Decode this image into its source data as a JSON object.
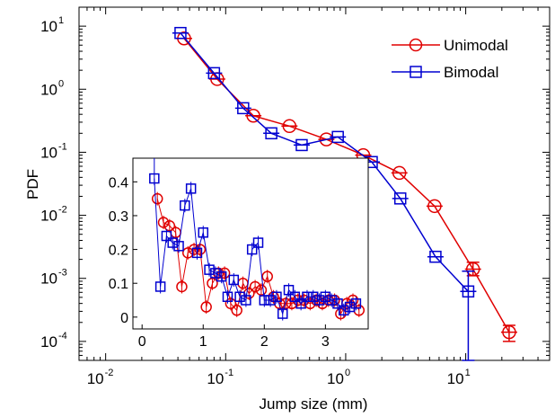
{
  "chart_data": [
    {
      "type": "line",
      "xscale": "log",
      "yscale": "log",
      "xlabel": "Jump size (mm)",
      "ylabel": "PDF",
      "xlim": [
        0.006,
        50
      ],
      "ylim": [
        5e-05,
        20
      ],
      "grid": false,
      "legend_position": "top-right",
      "x_ticks": [
        {
          "base": "10",
          "exp": "-2",
          "v": 0.01
        },
        {
          "base": "10",
          "exp": "-1",
          "v": 0.1
        },
        {
          "base": "10",
          "exp": "0",
          "v": 1
        },
        {
          "base": "10",
          "exp": "1",
          "v": 10
        }
      ],
      "y_ticks": [
        {
          "base": "10",
          "exp": "-4",
          "v": 0.0001
        },
        {
          "base": "10",
          "exp": "-3",
          "v": 0.001
        },
        {
          "base": "10",
          "exp": "-2",
          "v": 0.01
        },
        {
          "base": "10",
          "exp": "-1",
          "v": 0.1
        },
        {
          "base": "10",
          "exp": "0",
          "v": 1
        },
        {
          "base": "10",
          "exp": "1",
          "v": 10
        }
      ],
      "series": [
        {
          "name": "Unimodal",
          "color": "#e00000",
          "marker": "circle",
          "x": [
            0.045,
            0.085,
            0.17,
            0.34,
            0.69,
            1.4,
            2.8,
            5.5,
            11.5,
            23
          ],
          "y": [
            6.4,
            1.45,
            0.38,
            0.26,
            0.16,
            0.09,
            0.047,
            0.014,
            0.0014,
            0.00014
          ],
          "y_err_low": [
            null,
            null,
            null,
            null,
            null,
            null,
            null,
            null,
            0.0011,
            0.0001
          ],
          "y_err_high": [
            null,
            null,
            null,
            null,
            null,
            null,
            null,
            null,
            0.0018,
            0.00018
          ]
        },
        {
          "name": "Bimodal",
          "color": "#0000d0",
          "marker": "square",
          "x": [
            0.042,
            0.08,
            0.14,
            0.24,
            0.43,
            0.86,
            1.65,
            2.85,
            5.6,
            10.5
          ],
          "y": [
            7.8,
            1.8,
            0.5,
            0.2,
            0.13,
            0.175,
            0.07,
            0.0185,
            0.0022,
            0.00062
          ],
          "y_err_low": [
            null,
            null,
            null,
            null,
            null,
            null,
            null,
            null,
            null,
            5e-05
          ],
          "y_err_high": [
            null,
            null,
            null,
            null,
            null,
            null,
            null,
            null,
            null,
            0.0013
          ]
        }
      ]
    },
    {
      "type": "line",
      "inset": true,
      "xlim": [
        -0.15,
        3.7
      ],
      "ylim": [
        -0.035,
        0.47
      ],
      "x_ticks": [
        0,
        1,
        2,
        3
      ],
      "y_ticks": [
        0,
        0.1,
        0.2,
        0.3,
        0.4
      ],
      "x_tick_labels": [
        "0",
        "1",
        "2",
        "3"
      ],
      "y_tick_labels": [
        "0",
        "0.1",
        "0.2",
        "0.3",
        "0.4"
      ],
      "series": [
        {
          "name": "Unimodal",
          "color": "#e00000",
          "marker": "circle",
          "x": [
            0.25,
            0.35,
            0.45,
            0.55,
            0.65,
            0.75,
            0.85,
            0.95,
            1.05,
            1.15,
            1.25,
            1.35,
            1.45,
            1.55,
            1.65,
            1.75,
            1.85,
            1.95,
            2.05,
            2.15,
            2.25,
            2.35,
            2.45,
            2.55,
            2.65,
            2.75,
            2.85,
            2.95,
            3.05,
            3.15,
            3.25,
            3.35,
            3.45,
            3.55
          ],
          "y": [
            0.35,
            0.28,
            0.27,
            0.25,
            0.09,
            0.19,
            0.2,
            0.2,
            0.03,
            0.1,
            0.13,
            0.13,
            0.04,
            0.02,
            0.1,
            0.07,
            0.09,
            0.08,
            0.12,
            0.06,
            0.04,
            0.04,
            0.04,
            0.05,
            0.05,
            0.04,
            0.05,
            0.04,
            0.05,
            0.05,
            0.01,
            0.04,
            0.05,
            0.02
          ],
          "y_err_low": [
            0.02,
            0.02,
            0.02,
            0.02,
            0.02,
            0.02,
            0.02,
            0.02,
            0.02,
            0.02,
            0.02,
            0.02,
            0.02,
            0.02,
            0.02,
            0.02,
            0.02,
            0.02,
            0.02,
            0.02,
            0.02,
            0.02,
            0.02,
            0.02,
            0.02,
            0.02,
            0.02,
            0.02,
            0.02,
            0.02,
            0.02,
            0.02,
            0.02,
            0.02
          ],
          "y_err_high": [
            0.02,
            0.02,
            0.02,
            0.02,
            0.02,
            0.02,
            0.02,
            0.02,
            0.02,
            0.02,
            0.02,
            0.02,
            0.02,
            0.02,
            0.02,
            0.02,
            0.02,
            0.02,
            0.02,
            0.02,
            0.02,
            0.02,
            0.02,
            0.02,
            0.02,
            0.02,
            0.02,
            0.02,
            0.02,
            0.02,
            0.02,
            0.02,
            0.02,
            0.02
          ]
        },
        {
          "name": "Bimodal",
          "color": "#0000d0",
          "marker": "square",
          "x": [
            0.2,
            0.3,
            0.4,
            0.5,
            0.6,
            0.7,
            0.8,
            0.9,
            1.0,
            1.1,
            1.2,
            1.3,
            1.4,
            1.5,
            1.6,
            1.7,
            1.8,
            1.9,
            2.0,
            2.1,
            2.2,
            2.3,
            2.4,
            2.5,
            2.6,
            2.7,
            2.8,
            2.9,
            3.0,
            3.1,
            3.2,
            3.3,
            3.4,
            3.5
          ],
          "y": [
            0.41,
            0.09,
            0.24,
            0.22,
            0.21,
            0.33,
            0.38,
            0.19,
            0.25,
            0.14,
            0.13,
            0.12,
            0.06,
            0.11,
            0.06,
            0.05,
            0.2,
            0.22,
            0.05,
            0.05,
            0.06,
            0.01,
            0.08,
            0.06,
            0.04,
            0.06,
            0.06,
            0.05,
            0.06,
            0.05,
            0.04,
            0.02,
            0.03,
            0.04
          ],
          "y_err_low": [
            0.02,
            0.02,
            0.02,
            0.02,
            0.02,
            0.02,
            0.02,
            0.02,
            0.02,
            0.02,
            0.02,
            0.02,
            0.02,
            0.02,
            0.02,
            0.02,
            0.02,
            0.02,
            0.02,
            0.02,
            0.02,
            0.02,
            0.02,
            0.02,
            0.02,
            0.02,
            0.02,
            0.02,
            0.02,
            0.02,
            0.02,
            0.02,
            0.02,
            0.02
          ],
          "y_err_high": [
            0.06,
            0.02,
            0.02,
            0.02,
            0.02,
            0.02,
            0.02,
            0.02,
            0.02,
            0.02,
            0.02,
            0.02,
            0.02,
            0.02,
            0.02,
            0.02,
            0.02,
            0.02,
            0.02,
            0.02,
            0.02,
            0.02,
            0.02,
            0.02,
            0.02,
            0.02,
            0.02,
            0.02,
            0.02,
            0.02,
            0.02,
            0.02,
            0.02,
            0.02
          ]
        }
      ]
    }
  ]
}
